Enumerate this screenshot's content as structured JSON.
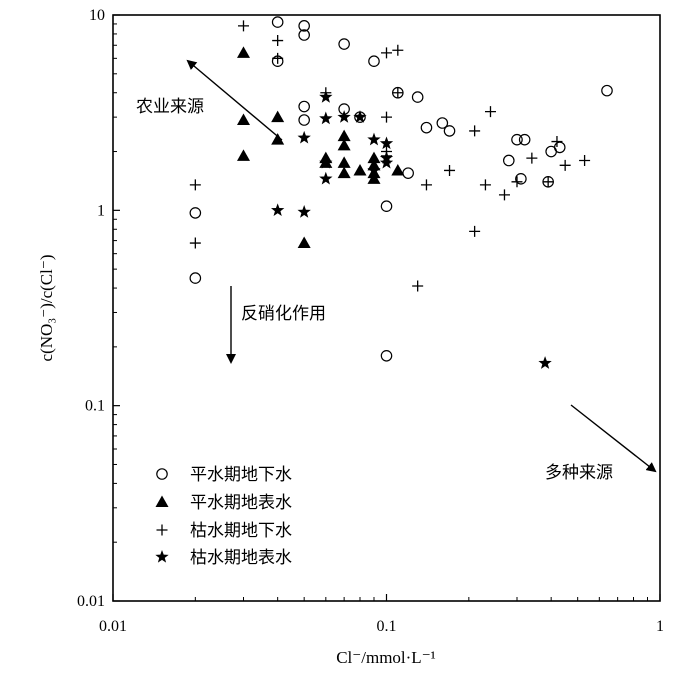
{
  "chart_data": {
    "type": "scatter",
    "x_scale": "log",
    "y_scale": "log",
    "xlim": [
      0.01,
      1
    ],
    "ylim": [
      0.01,
      10
    ],
    "x_ticks": [
      0.01,
      0.1,
      1
    ],
    "x_tick_labels": [
      "0.01",
      "0.1",
      "1"
    ],
    "y_ticks": [
      0.01,
      0.1,
      1,
      10
    ],
    "y_tick_labels": [
      "0.01",
      "0.1",
      "1",
      "10"
    ],
    "xlabel": "Cl⁻/mmol·L⁻¹",
    "ylabel": "c(NO₃⁻)/c(Cl⁻)",
    "grid": false,
    "legend_position": "bottom-left",
    "series": [
      {
        "name": "平水期地下水",
        "marker": "open-circle",
        "points": [
          [
            0.02,
            0.97
          ],
          [
            0.02,
            0.45
          ],
          [
            0.04,
            9.2
          ],
          [
            0.04,
            5.8
          ],
          [
            0.05,
            8.8
          ],
          [
            0.05,
            7.9
          ],
          [
            0.05,
            3.4
          ],
          [
            0.05,
            2.9
          ],
          [
            0.07,
            7.1
          ],
          [
            0.07,
            3.3
          ],
          [
            0.08,
            3.0
          ],
          [
            0.09,
            5.8
          ],
          [
            0.1,
            1.05
          ],
          [
            0.1,
            0.18
          ],
          [
            0.11,
            4.0
          ],
          [
            0.12,
            1.55
          ],
          [
            0.13,
            3.8
          ],
          [
            0.14,
            2.65
          ],
          [
            0.16,
            2.8
          ],
          [
            0.17,
            2.55
          ],
          [
            0.28,
            1.8
          ],
          [
            0.3,
            2.3
          ],
          [
            0.31,
            1.45
          ],
          [
            0.32,
            2.3
          ],
          [
            0.39,
            1.4
          ],
          [
            0.4,
            2.0
          ],
          [
            0.43,
            2.1
          ],
          [
            0.64,
            4.1
          ]
        ]
      },
      {
        "name": "平水期地表水",
        "marker": "filled-triangle",
        "points": [
          [
            0.03,
            6.4
          ],
          [
            0.03,
            2.9
          ],
          [
            0.03,
            1.9
          ],
          [
            0.04,
            3.0
          ],
          [
            0.04,
            2.3
          ],
          [
            0.05,
            0.68
          ],
          [
            0.06,
            1.85
          ],
          [
            0.06,
            1.75
          ],
          [
            0.07,
            2.4
          ],
          [
            0.07,
            2.15
          ],
          [
            0.07,
            1.75
          ],
          [
            0.07,
            1.55
          ],
          [
            0.08,
            1.6
          ],
          [
            0.09,
            1.85
          ],
          [
            0.09,
            1.7
          ],
          [
            0.09,
            1.55
          ],
          [
            0.09,
            1.45
          ],
          [
            0.11,
            1.6
          ]
        ]
      },
      {
        "name": "枯水期地下水",
        "marker": "plus",
        "points": [
          [
            0.02,
            1.35
          ],
          [
            0.02,
            0.68
          ],
          [
            0.03,
            8.8
          ],
          [
            0.04,
            7.4
          ],
          [
            0.04,
            6.0
          ],
          [
            0.06,
            4.0
          ],
          [
            0.1,
            6.4
          ],
          [
            0.11,
            6.6
          ],
          [
            0.11,
            4.0
          ],
          [
            0.1,
            3.0
          ],
          [
            0.1,
            2.0
          ],
          [
            0.1,
            1.9
          ],
          [
            0.13,
            0.41
          ],
          [
            0.14,
            1.35
          ],
          [
            0.17,
            1.6
          ],
          [
            0.21,
            2.55
          ],
          [
            0.21,
            0.78
          ],
          [
            0.23,
            1.35
          ],
          [
            0.24,
            3.2
          ],
          [
            0.27,
            1.2
          ],
          [
            0.3,
            1.4
          ],
          [
            0.34,
            1.85
          ],
          [
            0.39,
            1.4
          ],
          [
            0.42,
            2.25
          ],
          [
            0.45,
            1.7
          ],
          [
            0.53,
            1.8
          ]
        ]
      },
      {
        "name": "枯水期地表水",
        "marker": "star",
        "points": [
          [
            0.04,
            1.0
          ],
          [
            0.05,
            2.35
          ],
          [
            0.05,
            0.98
          ],
          [
            0.06,
            3.8
          ],
          [
            0.06,
            2.95
          ],
          [
            0.06,
            1.75
          ],
          [
            0.06,
            1.45
          ],
          [
            0.07,
            3.0
          ],
          [
            0.08,
            3.0
          ],
          [
            0.09,
            2.3
          ],
          [
            0.09,
            1.6
          ],
          [
            0.1,
            2.2
          ],
          [
            0.1,
            1.85
          ],
          [
            0.1,
            1.75
          ],
          [
            0.38,
            0.165
          ]
        ]
      }
    ],
    "annotations": [
      {
        "text": "农业来源",
        "arrow": "from lower-right toward upper-left"
      },
      {
        "text": "反硝化作用",
        "arrow": "pointing down"
      },
      {
        "text": "多种来源",
        "arrow": "from upper-left toward lower-right"
      }
    ]
  }
}
